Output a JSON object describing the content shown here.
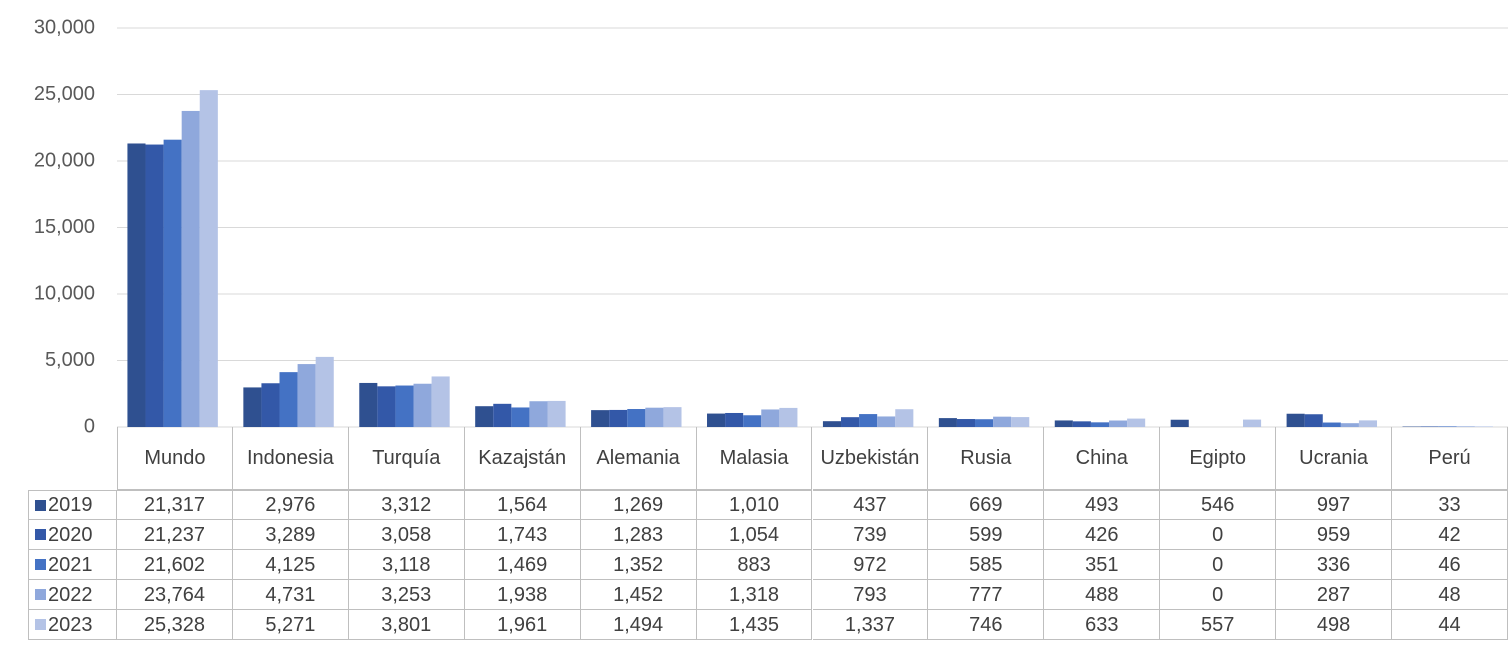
{
  "chart_data": {
    "type": "bar",
    "categories": [
      "Mundo",
      "Indonesia",
      "Turquía",
      "Kazajstán",
      "Alemania",
      "Malasia",
      "Uzbekistán",
      "Rusia",
      "China",
      "Egipto",
      "Ucrania",
      "Perú"
    ],
    "series": [
      {
        "name": "2019",
        "color": "#2f5090",
        "values": [
          21317,
          2976,
          3312,
          1564,
          1269,
          1010,
          437,
          669,
          493,
          546,
          997,
          33
        ],
        "value_labels": [
          "21,317",
          "2,976",
          "3,312",
          "1,564",
          "1,269",
          "1,010",
          "437",
          "669",
          "493",
          "546",
          "997",
          "33"
        ]
      },
      {
        "name": "2020",
        "color": "#3358a8",
        "values": [
          21237,
          3289,
          3058,
          1743,
          1283,
          1054,
          739,
          599,
          426,
          0,
          959,
          42
        ],
        "value_labels": [
          "21,237",
          "3,289",
          "3,058",
          "1,743",
          "1,283",
          "1,054",
          "739",
          "599",
          "426",
          "0",
          "959",
          "42"
        ]
      },
      {
        "name": "2021",
        "color": "#4472c4",
        "values": [
          21602,
          4125,
          3118,
          1469,
          1352,
          883,
          972,
          585,
          351,
          0,
          336,
          46
        ],
        "value_labels": [
          "21,602",
          "4,125",
          "3,118",
          "1,469",
          "1,352",
          "883",
          "972",
          "585",
          "351",
          "0",
          "336",
          "46"
        ]
      },
      {
        "name": "2022",
        "color": "#8fa8dc",
        "values": [
          23764,
          4731,
          3253,
          1938,
          1452,
          1318,
          793,
          777,
          488,
          0,
          287,
          48
        ],
        "value_labels": [
          "23,764",
          "4,731",
          "3,253",
          "1,938",
          "1,452",
          "1,318",
          "793",
          "777",
          "488",
          "0",
          "287",
          "48"
        ]
      },
      {
        "name": "2023",
        "color": "#b4c3e6",
        "values": [
          25328,
          5271,
          3801,
          1961,
          1494,
          1435,
          1337,
          746,
          633,
          557,
          498,
          44
        ],
        "value_labels": [
          "25,328",
          "5,271",
          "3,801",
          "1,961",
          "1,494",
          "1,435",
          "1,337",
          "746",
          "633",
          "557",
          "498",
          "44"
        ]
      }
    ],
    "ylim": [
      0,
      30000
    ],
    "yticks": [
      0,
      {
        "value": 5000,
        "label": "5,000"
      },
      {
        "value": 10000,
        "label": "10,000"
      },
      {
        "value": 15000,
        "label": "15,000"
      },
      {
        "value": 20000,
        "label": "20,000"
      },
      {
        "value": 25000,
        "label": "25,000"
      },
      {
        "value": 30000,
        "label": "30,000"
      }
    ],
    "grid": true
  }
}
